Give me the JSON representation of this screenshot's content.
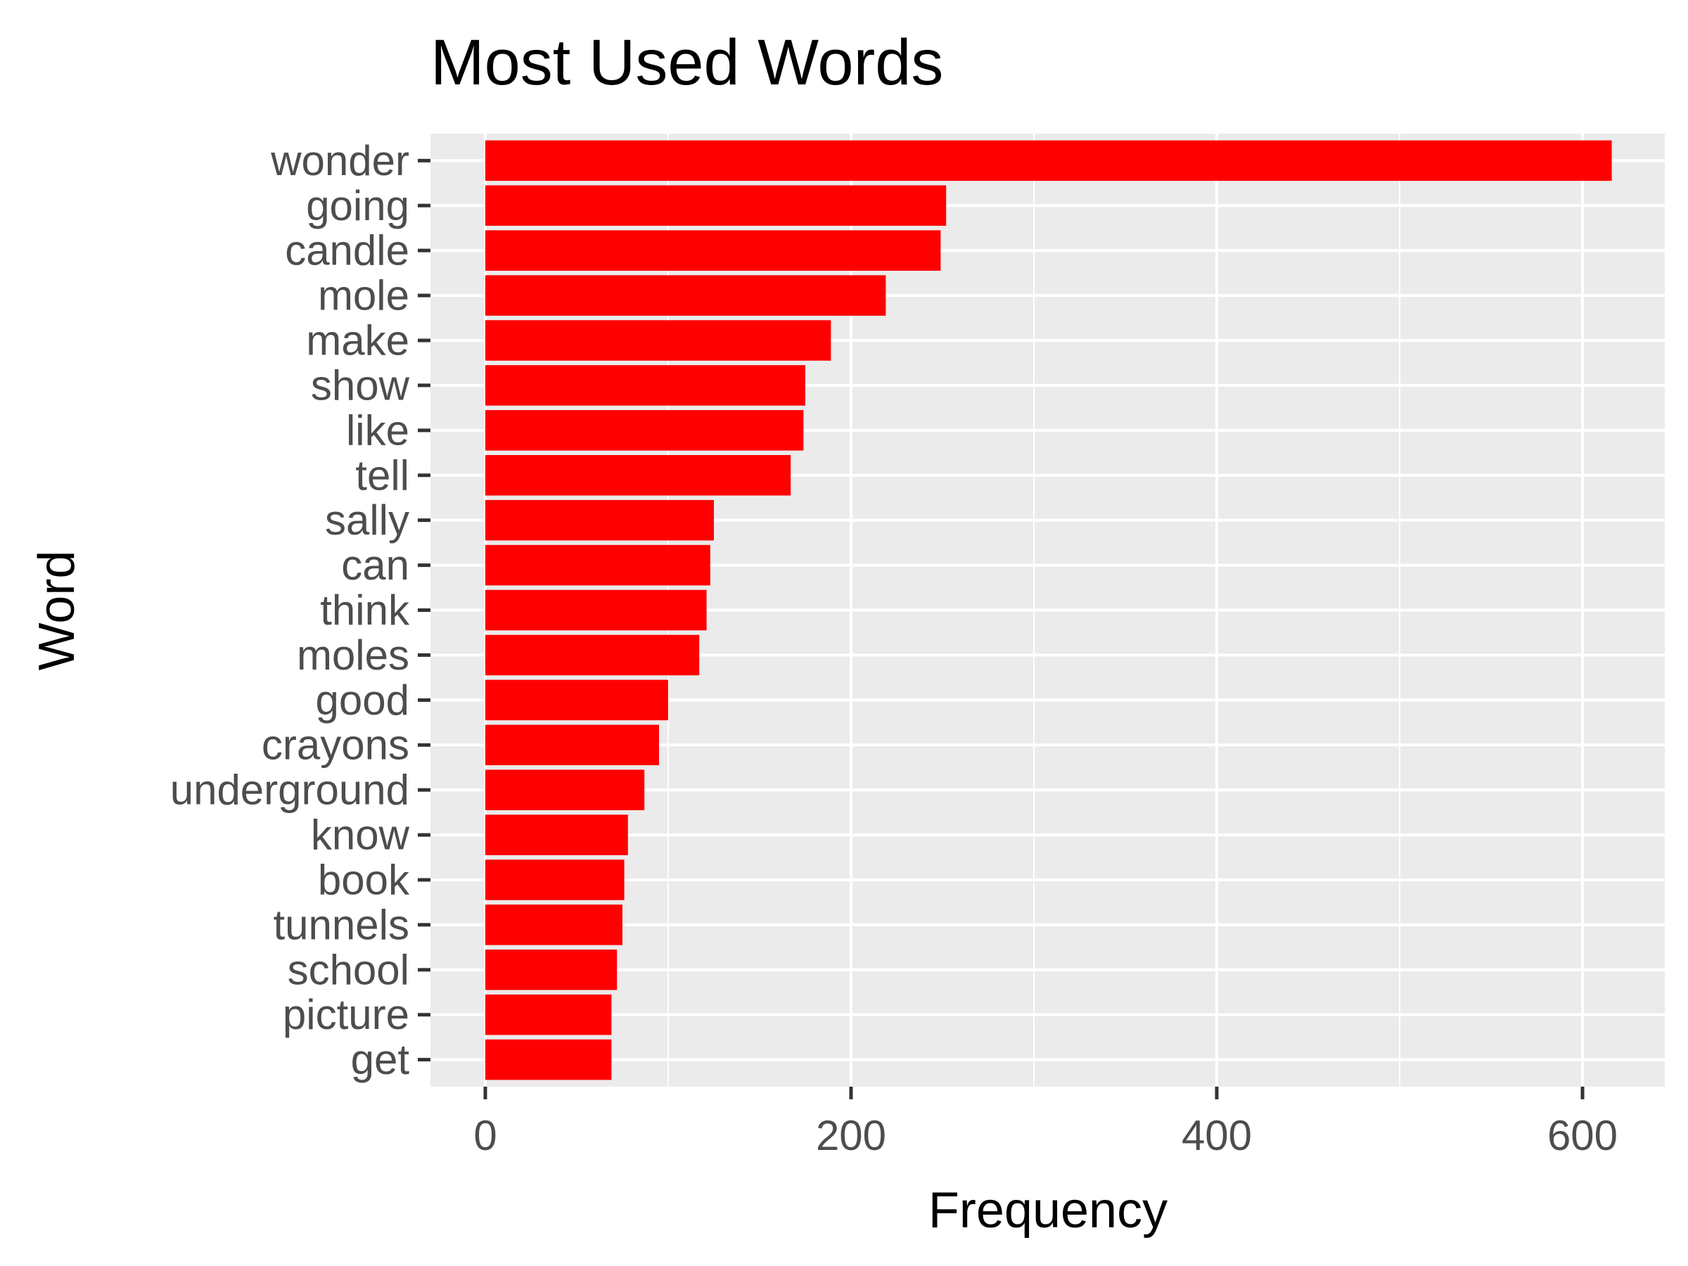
{
  "chart_data": {
    "type": "bar",
    "orientation": "horizontal",
    "title": "Most Used Words",
    "xlabel": "Frequency",
    "ylabel": "Word",
    "categories": [
      "wonder",
      "going",
      "candle",
      "mole",
      "make",
      "show",
      "like",
      "tell",
      "sally",
      "can",
      "think",
      "moles",
      "good",
      "crayons",
      "underground",
      "know",
      "book",
      "tunnels",
      "school",
      "picture",
      "get"
    ],
    "values": [
      616,
      252,
      249,
      219,
      189,
      175,
      174,
      167,
      125,
      123,
      121,
      117,
      100,
      95,
      87,
      78,
      76,
      75,
      72,
      69,
      69
    ],
    "xlim": [
      -30,
      645
    ],
    "x_ticks": [
      0,
      200,
      400,
      600
    ],
    "x_tick_labels": [
      "0",
      "200",
      "400",
      "600"
    ],
    "grid": true,
    "legend": "none",
    "colors": {
      "bar": "#ff0000",
      "panel": "#ebebeb",
      "grid": "#ffffff",
      "tick_text": "#4d4d4d",
      "tick_mark": "#333333",
      "title_text": "#000000"
    }
  }
}
